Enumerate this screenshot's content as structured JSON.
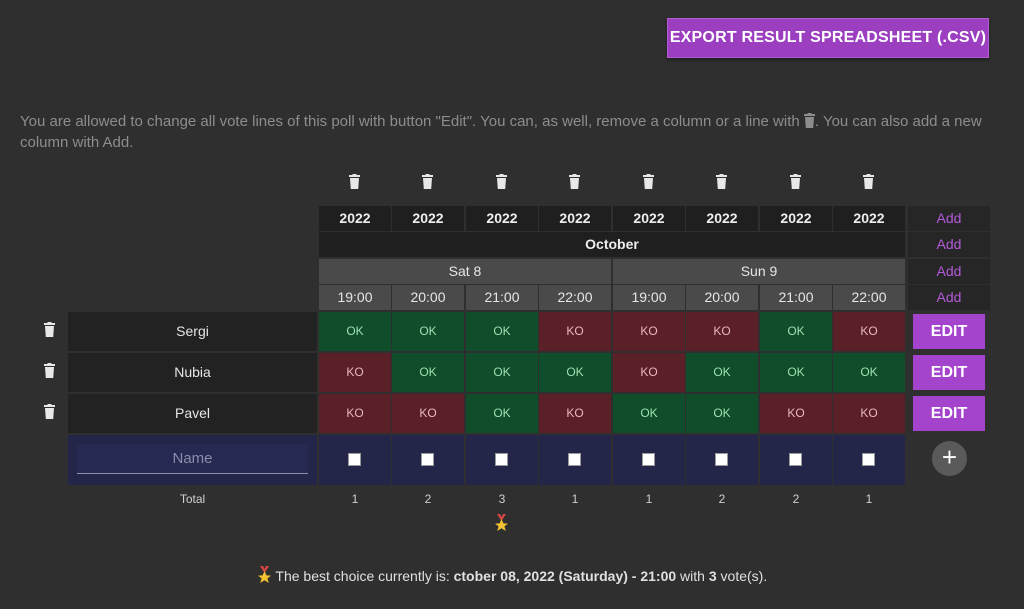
{
  "export_button": "EXPORT RESULT SPREADSHEET (.CSV)",
  "info": {
    "part1": "You are allowed to change all vote lines of this poll with button \"Edit\". You can, as well, remove a column or a line with",
    "part2": ". You can also add a new column with Add."
  },
  "table": {
    "years": [
      "2022",
      "2022",
      "2022",
      "2022",
      "2022",
      "2022",
      "2022",
      "2022"
    ],
    "month": "October",
    "days": [
      "Sat 8",
      "Sun 9"
    ],
    "times": [
      "19:00",
      "20:00",
      "21:00",
      "22:00",
      "19:00",
      "20:00",
      "21:00",
      "22:00"
    ],
    "add_label": "Add",
    "rows": [
      {
        "name": "Sergi",
        "votes": [
          "OK",
          "OK",
          "OK",
          "KO",
          "KO",
          "KO",
          "OK",
          "KO"
        ]
      },
      {
        "name": "Nubia",
        "votes": [
          "KO",
          "OK",
          "OK",
          "OK",
          "KO",
          "OK",
          "OK",
          "OK"
        ]
      },
      {
        "name": "Pavel",
        "votes": [
          "KO",
          "KO",
          "OK",
          "KO",
          "OK",
          "OK",
          "KO",
          "KO"
        ]
      }
    ],
    "edit_label": "EDIT",
    "name_placeholder": "Name",
    "total_label": "Total",
    "totals": [
      "1",
      "2",
      "3",
      "1",
      "1",
      "2",
      "2",
      "1"
    ]
  },
  "best": {
    "prefix": "The best choice currently is:",
    "choice": "ctober 08, 2022 (Saturday) - 21:00",
    "mid": "with",
    "votes": "3",
    "suffix": "vote(s)."
  },
  "colors": {
    "ok": "#0f4d2b",
    "ko": "#5b1f27",
    "accent": "#a444cc"
  }
}
